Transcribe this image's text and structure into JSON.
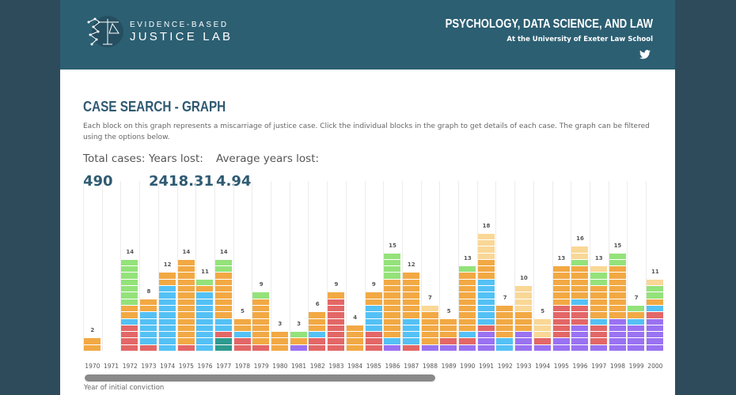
{
  "header": {
    "logo_line1": "EVIDENCE-BASED",
    "logo_line2": "JUSTICE LAB",
    "title": "PSYCHOLOGY, DATA SCIENCE, AND LAW",
    "subtitle": "At the University of Exeter Law School"
  },
  "page": {
    "title": "CASE SEARCH - GRAPH",
    "description": "Each block on this graph represents a miscarriage of justice case. Click the individual blocks in the graph to get details of each case. The graph can be filtered using the options below."
  },
  "stats": [
    {
      "label": "Total cases:",
      "value": "490"
    },
    {
      "label": "Years lost:",
      "value": "2418.31"
    },
    {
      "label": "Average years lost:",
      "value": "4.94"
    }
  ],
  "colors": {
    "R": "#e36767",
    "B": "#54c1f5",
    "O": "#f2a944",
    "G": "#94e27a",
    "P": "#9a72f2",
    "T": "#2f9b8f",
    "L": "#f9d796"
  },
  "chart_data": {
    "type": "bar",
    "xlabel": "Year of initial conviction",
    "stack_order": "bottom-to-top",
    "categories": [
      "1970",
      "1971",
      "1972",
      "1973",
      "1974",
      "1975",
      "1976",
      "1977",
      "1978",
      "1979",
      "1980",
      "1981",
      "1982",
      "1983",
      "1984",
      "1985",
      "1986",
      "1987",
      "1988",
      "1989",
      "1990",
      "1991",
      "1992",
      "1993",
      "1994",
      "1995",
      "1996",
      "1997",
      "1998",
      "1999",
      "2000"
    ],
    "totals": [
      2,
      0,
      14,
      8,
      12,
      14,
      11,
      14,
      5,
      9,
      3,
      3,
      6,
      9,
      4,
      9,
      15,
      12,
      7,
      5,
      13,
      18,
      7,
      10,
      5,
      13,
      16,
      13,
      15,
      7,
      11
    ],
    "stacks": [
      [
        [
          "O",
          2
        ]
      ],
      [],
      [
        [
          "R",
          4
        ],
        [
          "B",
          1
        ],
        [
          "O",
          2
        ],
        [
          "G",
          7
        ]
      ],
      [
        [
          "R",
          1
        ],
        [
          "B",
          5
        ],
        [
          "O",
          2
        ]
      ],
      [
        [
          "B",
          10
        ],
        [
          "O",
          2
        ]
      ],
      [
        [
          "R",
          1
        ],
        [
          "O",
          13
        ]
      ],
      [
        [
          "B",
          9
        ],
        [
          "O",
          1
        ],
        [
          "G",
          1
        ]
      ],
      [
        [
          "T",
          2
        ],
        [
          "R",
          1
        ],
        [
          "B",
          2
        ],
        [
          "O",
          7
        ],
        [
          "G",
          2
        ]
      ],
      [
        [
          "R",
          2
        ],
        [
          "B",
          1
        ],
        [
          "O",
          2
        ]
      ],
      [
        [
          "R",
          1
        ],
        [
          "O",
          7
        ],
        [
          "G",
          1
        ]
      ],
      [
        [
          "O",
          3
        ]
      ],
      [
        [
          "P",
          1
        ],
        [
          "O",
          1
        ],
        [
          "G",
          1
        ]
      ],
      [
        [
          "R",
          2
        ],
        [
          "B",
          1
        ],
        [
          "O",
          3
        ]
      ],
      [
        [
          "R",
          8
        ],
        [
          "O",
          1
        ]
      ],
      [
        [
          "O",
          4
        ]
      ],
      [
        [
          "R",
          3
        ],
        [
          "B",
          4
        ],
        [
          "O",
          2
        ]
      ],
      [
        [
          "P",
          1
        ],
        [
          "B",
          1
        ],
        [
          "O",
          9
        ],
        [
          "G",
          4
        ]
      ],
      [
        [
          "R",
          1
        ],
        [
          "B",
          4
        ],
        [
          "O",
          7
        ]
      ],
      [
        [
          "P",
          1
        ],
        [
          "O",
          5
        ],
        [
          "L",
          1
        ]
      ],
      [
        [
          "P",
          1
        ],
        [
          "R",
          1
        ],
        [
          "O",
          3
        ]
      ],
      [
        [
          "P",
          1
        ],
        [
          "R",
          1
        ],
        [
          "B",
          1
        ],
        [
          "O",
          9
        ],
        [
          "G",
          1
        ]
      ],
      [
        [
          "P",
          3
        ],
        [
          "R",
          1
        ],
        [
          "B",
          7
        ],
        [
          "O",
          3
        ],
        [
          "L",
          4
        ]
      ],
      [
        [
          "B",
          2
        ],
        [
          "O",
          5
        ]
      ],
      [
        [
          "P",
          3
        ],
        [
          "O",
          3
        ],
        [
          "L",
          4
        ]
      ],
      [
        [
          "P",
          1
        ],
        [
          "R",
          1
        ],
        [
          "L",
          3
        ]
      ],
      [
        [
          "P",
          2
        ],
        [
          "R",
          5
        ],
        [
          "O",
          6
        ]
      ],
      [
        [
          "P",
          4
        ],
        [
          "R",
          3
        ],
        [
          "B",
          1
        ],
        [
          "O",
          5
        ],
        [
          "G",
          1
        ],
        [
          "L",
          2
        ]
      ],
      [
        [
          "P",
          1
        ],
        [
          "R",
          3
        ],
        [
          "B",
          1
        ],
        [
          "O",
          5
        ],
        [
          "G",
          2
        ],
        [
          "L",
          1
        ]
      ],
      [
        [
          "P",
          5
        ],
        [
          "O",
          8
        ],
        [
          "G",
          2
        ]
      ],
      [
        [
          "P",
          4
        ],
        [
          "B",
          1
        ],
        [
          "O",
          1
        ],
        [
          "G",
          1
        ]
      ],
      [
        [
          "P",
          5
        ],
        [
          "R",
          1
        ],
        [
          "B",
          1
        ],
        [
          "O",
          1
        ],
        [
          "G",
          2
        ],
        [
          "L",
          1
        ]
      ]
    ]
  }
}
